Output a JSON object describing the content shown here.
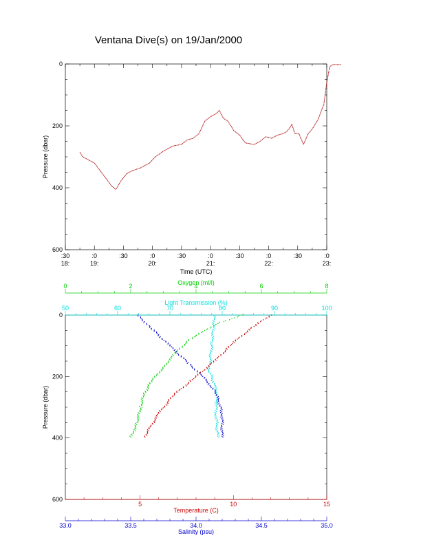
{
  "title": "Ventana Dive(s) on 19/Jan/2000",
  "chart_data": [
    {
      "type": "line",
      "name": "time-series",
      "xlabel": "Time (UTC)",
      "ylabel": "Pressure (dbar)",
      "ylim": [
        600,
        0
      ],
      "y_ticks": [
        "0",
        "200",
        "400",
        "600"
      ],
      "x_ticks": [
        {
          "top": ":30",
          "bottom": "18:"
        },
        {
          "top": ":0",
          "bottom": "19:"
        },
        {
          "top": ":30",
          "bottom": ""
        },
        {
          "top": ":0",
          "bottom": "20:"
        },
        {
          "top": ":30",
          "bottom": ""
        },
        {
          "top": ":0",
          "bottom": "21:"
        },
        {
          "top": ":30",
          "bottom": ""
        },
        {
          "top": ":0",
          "bottom": "22:"
        },
        {
          "top": ":30",
          "bottom": ""
        },
        {
          "top": ":0",
          "bottom": "23:"
        }
      ],
      "x_range_hours": [
        18.5,
        23.0
      ],
      "series": [
        {
          "color": "#b01010",
          "points": [
            [
              18.75,
              285
            ],
            [
              18.8,
              300
            ],
            [
              18.9,
              310
            ],
            [
              19.0,
              320
            ],
            [
              19.1,
              345
            ],
            [
              19.2,
              370
            ],
            [
              19.3,
              395
            ],
            [
              19.37,
              405
            ],
            [
              19.45,
              380
            ],
            [
              19.55,
              355
            ],
            [
              19.65,
              345
            ],
            [
              19.8,
              335
            ],
            [
              19.95,
              320
            ],
            [
              20.05,
              300
            ],
            [
              20.2,
              280
            ],
            [
              20.35,
              265
            ],
            [
              20.5,
              260
            ],
            [
              20.6,
              245
            ],
            [
              20.7,
              240
            ],
            [
              20.8,
              225
            ],
            [
              20.9,
              185
            ],
            [
              21.0,
              170
            ],
            [
              21.05,
              165
            ],
            [
              21.1,
              160
            ],
            [
              21.15,
              150
            ],
            [
              21.22,
              175
            ],
            [
              21.3,
              185
            ],
            [
              21.4,
              215
            ],
            [
              21.5,
              230
            ],
            [
              21.6,
              255
            ],
            [
              21.75,
              260
            ],
            [
              21.85,
              250
            ],
            [
              21.95,
              235
            ],
            [
              22.05,
              240
            ],
            [
              22.15,
              230
            ],
            [
              22.25,
              225
            ],
            [
              22.3,
              220
            ],
            [
              22.35,
              210
            ],
            [
              22.4,
              195
            ],
            [
              22.45,
              225
            ],
            [
              22.52,
              225
            ],
            [
              22.6,
              260
            ],
            [
              22.68,
              225
            ],
            [
              22.75,
              210
            ],
            [
              22.85,
              180
            ],
            [
              22.95,
              130
            ],
            [
              23.0,
              60
            ],
            [
              23.05,
              10
            ],
            [
              23.1,
              2
            ],
            [
              23.25,
              2
            ]
          ]
        }
      ]
    },
    {
      "type": "scatter",
      "name": "profiles",
      "ylabel": "Pressure (dbar)",
      "ylim": [
        600,
        0
      ],
      "y_ticks": [
        "0",
        "200",
        "400",
        "600"
      ],
      "axes": {
        "oxygen": {
          "label": "Oxygen (ml/l)",
          "range": [
            0,
            8
          ],
          "ticks": [
            "0",
            "2",
            "4",
            "6",
            "8"
          ],
          "color": "#00cc00"
        },
        "light": {
          "label": "Light Transmission (%)",
          "range": [
            50,
            100
          ],
          "ticks": [
            "50",
            "60",
            "70",
            "80",
            "90",
            "100"
          ],
          "color": "#00dddd"
        },
        "temperature": {
          "label": "Temperature (C)",
          "range": [
            1,
            15
          ],
          "ticks": [
            "5",
            "10",
            "15"
          ],
          "color": "#cc0000"
        },
        "salinity": {
          "label": "Salinity (psu)",
          "range": [
            33.0,
            35.0
          ],
          "ticks": [
            "33.0",
            "33.5",
            "34.0",
            "34.5",
            "35.0"
          ],
          "color": "#0000cc"
        }
      },
      "series": [
        {
          "axis": "oxygen",
          "color": "#00cc00",
          "points": [
            [
              5.4,
              0
            ],
            [
              4.6,
              30
            ],
            [
              3.8,
              80
            ],
            [
              3.4,
              120
            ],
            [
              3.0,
              170
            ],
            [
              2.6,
              220
            ],
            [
              2.4,
              260
            ],
            [
              2.3,
              300
            ],
            [
              2.2,
              350
            ],
            [
              2.0,
              400
            ]
          ]
        },
        {
          "axis": "light",
          "color": "#00dddd",
          "points": [
            [
              78.5,
              0
            ],
            [
              78.0,
              100
            ],
            [
              77.5,
              180
            ],
            [
              79.0,
              250
            ],
            [
              78.8,
              320
            ],
            [
              79.2,
              400
            ]
          ]
        },
        {
          "axis": "temperature",
          "color": "#cc0000",
          "points": [
            [
              12.0,
              0
            ],
            [
              11.0,
              40
            ],
            [
              10.0,
              90
            ],
            [
              9.0,
              150
            ],
            [
              7.8,
              210
            ],
            [
              6.8,
              260
            ],
            [
              6.0,
              320
            ],
            [
              5.2,
              400
            ]
          ]
        },
        {
          "axis": "salinity",
          "color": "#0000cc",
          "points": [
            [
              33.55,
              0
            ],
            [
              33.65,
              40
            ],
            [
              33.8,
              100
            ],
            [
              33.95,
              160
            ],
            [
              34.05,
              200
            ],
            [
              34.15,
              250
            ],
            [
              34.2,
              320
            ],
            [
              34.2,
              400
            ]
          ]
        }
      ]
    }
  ]
}
